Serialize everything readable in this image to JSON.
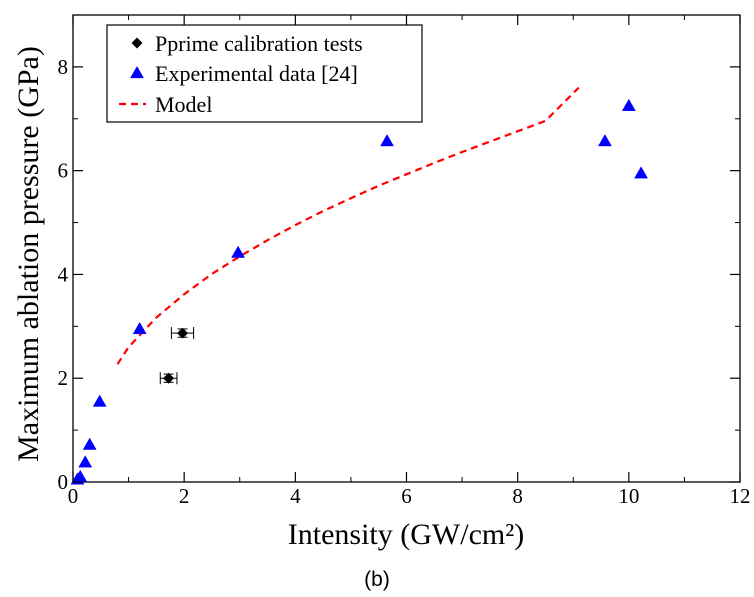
{
  "chart_data": {
    "type": "scatter",
    "xlabel": "Intensity (GW/cm²)",
    "ylabel": "Maximum ablation pressure (GPa)",
    "xlim": [
      0,
      12
    ],
    "ylim": [
      0,
      9
    ],
    "x_ticks": [
      0,
      2,
      4,
      6,
      8,
      10,
      12
    ],
    "y_ticks": [
      0,
      2,
      4,
      6,
      8
    ],
    "grid": false,
    "legend_position": "top-left",
    "series": [
      {
        "name": "Pprime calibration tests",
        "marker": "diamond",
        "color": "#000000",
        "points": [
          {
            "x": 1.72,
            "y": 2.0,
            "xerr": 0.15,
            "yerr": 0.08
          },
          {
            "x": 1.97,
            "y": 2.87,
            "xerr": 0.2,
            "yerr": 0.08
          }
        ]
      },
      {
        "name": "Experimental data [24]",
        "marker": "triangle",
        "color": "#0000ff",
        "points": [
          {
            "x": 0.08,
            "y": 0.05
          },
          {
            "x": 0.13,
            "y": 0.1
          },
          {
            "x": 0.22,
            "y": 0.38
          },
          {
            "x": 0.3,
            "y": 0.72
          },
          {
            "x": 0.48,
            "y": 1.55
          },
          {
            "x": 1.2,
            "y": 2.95
          },
          {
            "x": 2.97,
            "y": 4.42
          },
          {
            "x": 5.65,
            "y": 6.57
          },
          {
            "x": 9.57,
            "y": 6.57
          },
          {
            "x": 10.0,
            "y": 7.25
          },
          {
            "x": 10.22,
            "y": 5.95
          }
        ]
      },
      {
        "name": "Model",
        "line": "dashed",
        "color": "#ff0000",
        "x": [
          0.8,
          1.0,
          1.5,
          2.0,
          2.5,
          3.0,
          3.5,
          4.0,
          4.5,
          5.0,
          5.5,
          6.0,
          6.5,
          7.0,
          7.5,
          8.0,
          8.5,
          9.1
        ],
        "y": [
          2.27,
          2.6,
          3.17,
          3.62,
          4.01,
          4.35,
          4.66,
          4.95,
          5.22,
          5.47,
          5.71,
          5.93,
          6.15,
          6.36,
          6.56,
          6.76,
          6.96,
          7.6
        ]
      }
    ]
  },
  "caption": "(b)"
}
